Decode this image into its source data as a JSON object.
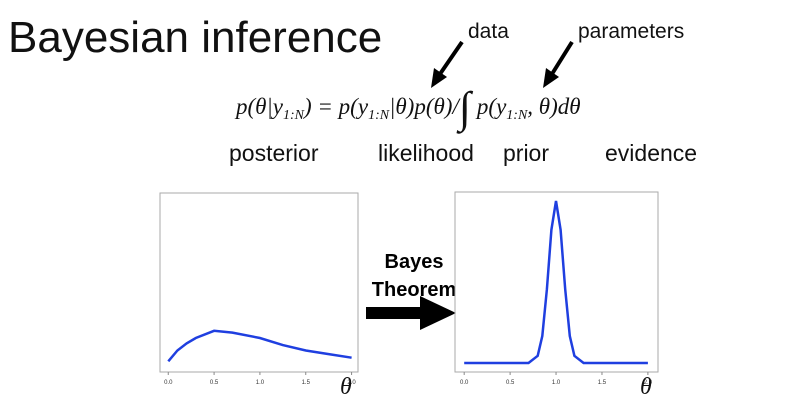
{
  "title": "Bayesian inference",
  "annotations": [
    "data",
    "parameters"
  ],
  "formula": [
    "p(θ|y",
    "1:N",
    ") = p(y",
    "1:N",
    "|θ)p(θ)/",
    "∫",
    "p(y",
    "1:N",
    ", θ)dθ"
  ],
  "formula_labels": [
    "posterior",
    "likelihood",
    "prior",
    "evidence"
  ],
  "arrow_label": [
    "Bayes",
    "Theorem"
  ],
  "chart_data": [
    {
      "type": "line",
      "x_label": "θ",
      "color": "#1f3fe0",
      "x": [
        0,
        0.1,
        0.2,
        0.3,
        0.5,
        0.7,
        1.0,
        1.25,
        1.5,
        1.75,
        2.0
      ],
      "values": [
        0.06,
        0.12,
        0.16,
        0.19,
        0.23,
        0.22,
        0.19,
        0.15,
        0.12,
        0.1,
        0.08
      ],
      "xlim": [
        -0.09,
        2.07
      ],
      "ylim": [
        0,
        1
      ],
      "xticks": [
        {
          "value": 0,
          "label": "0.0"
        },
        {
          "value": 0.5,
          "label": "0.5"
        },
        {
          "value": 1,
          "label": "1.0"
        },
        {
          "value": 1.5,
          "label": "1.5"
        },
        {
          "value": 2,
          "label": "2.0"
        }
      ]
    },
    {
      "type": "line",
      "x_label": "θ",
      "color": "#1f3fe0",
      "x": [
        0,
        0.5,
        0.7,
        0.8,
        0.85,
        0.9,
        0.95,
        1.0,
        1.05,
        1.1,
        1.15,
        1.2,
        1.3,
        1.5,
        2.0
      ],
      "values": [
        0.05,
        0.05,
        0.05,
        0.09,
        0.2,
        0.46,
        0.79,
        0.95,
        0.79,
        0.46,
        0.2,
        0.09,
        0.05,
        0.05,
        0.05
      ],
      "xlim": [
        -0.1,
        2.11
      ],
      "ylim": [
        0,
        1
      ],
      "xticks": [
        {
          "value": 0,
          "label": "0.0"
        },
        {
          "value": 0.5,
          "label": "0.5"
        },
        {
          "value": 1,
          "label": "1.0"
        },
        {
          "value": 1.5,
          "label": "1.5"
        },
        {
          "value": 2,
          "label": "2.0"
        }
      ]
    }
  ]
}
